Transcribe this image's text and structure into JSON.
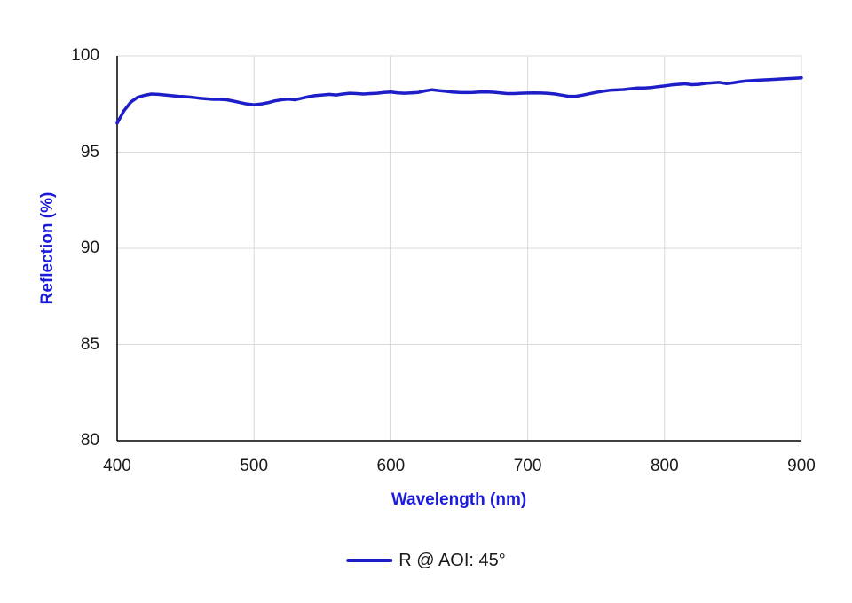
{
  "colors": {
    "line": "#1e1ec8",
    "axis_title": "#1b1bdd",
    "tick_label": "#1a1a1a",
    "gridline": "#d9d9d9",
    "axis_line": "#000000",
    "background": "#ffffff"
  },
  "axes": {
    "x_title": "Wavelength (nm)",
    "y_title": "Reflection (%)"
  },
  "legend": {
    "label": "R @ AOI: 45°"
  },
  "chart_data": {
    "type": "line",
    "title": "",
    "xlabel": "Wavelength (nm)",
    "ylabel": "Reflection (%)",
    "xlim": [
      400,
      900
    ],
    "ylim": [
      80,
      100
    ],
    "x_ticks": [
      400,
      500,
      600,
      700,
      800,
      900
    ],
    "y_ticks": [
      80,
      85,
      90,
      95,
      100
    ],
    "grid": true,
    "legend_position": "bottom",
    "series": [
      {
        "name": "R @ AOI: 45°",
        "color": "#1e1ec8",
        "x": [
          400,
          405,
          410,
          415,
          420,
          425,
          430,
          435,
          440,
          445,
          450,
          455,
          460,
          465,
          470,
          475,
          480,
          485,
          490,
          495,
          500,
          505,
          510,
          515,
          520,
          525,
          530,
          535,
          540,
          545,
          550,
          555,
          560,
          565,
          570,
          575,
          580,
          585,
          590,
          595,
          600,
          605,
          610,
          615,
          620,
          625,
          630,
          635,
          640,
          645,
          650,
          655,
          660,
          665,
          670,
          675,
          680,
          685,
          690,
          695,
          700,
          705,
          710,
          715,
          720,
          725,
          730,
          735,
          740,
          745,
          750,
          755,
          760,
          765,
          770,
          775,
          780,
          785,
          790,
          795,
          800,
          805,
          810,
          815,
          820,
          825,
          830,
          835,
          840,
          845,
          850,
          855,
          860,
          865,
          870,
          875,
          880,
          885,
          890,
          895,
          900
        ],
        "values": [
          96.5,
          97.15,
          97.6,
          97.85,
          97.95,
          98.02,
          98.0,
          97.97,
          97.93,
          97.9,
          97.88,
          97.85,
          97.8,
          97.77,
          97.74,
          97.74,
          97.72,
          97.65,
          97.57,
          97.5,
          97.46,
          97.5,
          97.56,
          97.66,
          97.72,
          97.75,
          97.72,
          97.8,
          97.88,
          97.94,
          97.97,
          98.0,
          97.97,
          98.02,
          98.06,
          98.04,
          98.02,
          98.04,
          98.06,
          98.1,
          98.12,
          98.08,
          98.06,
          98.08,
          98.1,
          98.18,
          98.24,
          98.2,
          98.16,
          98.12,
          98.1,
          98.09,
          98.1,
          98.12,
          98.13,
          98.11,
          98.08,
          98.04,
          98.04,
          98.06,
          98.07,
          98.08,
          98.07,
          98.05,
          98.02,
          97.96,
          97.9,
          97.9,
          97.96,
          98.03,
          98.1,
          98.16,
          98.21,
          98.23,
          98.25,
          98.29,
          98.33,
          98.33,
          98.35,
          98.4,
          98.44,
          98.49,
          98.52,
          98.55,
          98.5,
          98.52,
          98.57,
          98.6,
          98.62,
          98.56,
          98.6,
          98.66,
          98.7,
          98.72,
          98.74,
          98.76,
          98.78,
          98.8,
          98.82,
          98.84,
          98.86
        ]
      }
    ]
  }
}
